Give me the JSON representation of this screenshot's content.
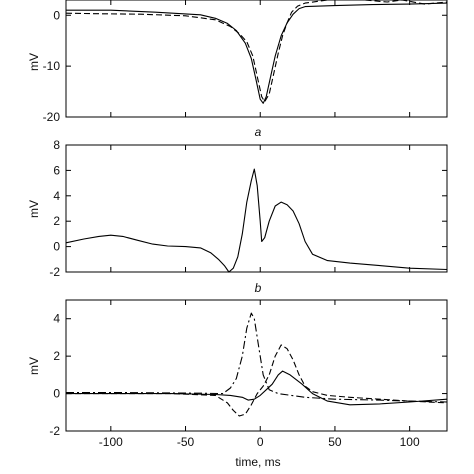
{
  "chart_data": [
    {
      "type": "line",
      "panel_label": "a",
      "xlabel": "",
      "ylabel": "mV",
      "xlim": [
        -130,
        125
      ],
      "ylim": [
        -20,
        3
      ],
      "yticks": [
        -20,
        -10,
        0
      ],
      "grid": false,
      "series": [
        {
          "style": "solid",
          "points": [
            [
              -130,
              1.0
            ],
            [
              -100,
              1.0
            ],
            [
              -70,
              0.6
            ],
            [
              -40,
              0.1
            ],
            [
              -30,
              -0.6
            ],
            [
              -22,
              -1.6
            ],
            [
              -16,
              -3.0
            ],
            [
              -10,
              -5.5
            ],
            [
              -6,
              -8.5
            ],
            [
              -3,
              -12.5
            ],
            [
              0,
              -16.5
            ],
            [
              2,
              -17.3
            ],
            [
              4,
              -16.0
            ],
            [
              7,
              -12.0
            ],
            [
              10,
              -8.0
            ],
            [
              14,
              -4.0
            ],
            [
              18,
              -1.5
            ],
            [
              22,
              0.2
            ],
            [
              26,
              1.3
            ],
            [
              30,
              1.7
            ],
            [
              50,
              1.9
            ],
            [
              75,
              2.1
            ],
            [
              100,
              2.2
            ],
            [
              125,
              2.4
            ]
          ]
        },
        {
          "style": "dashed",
          "points": [
            [
              -130,
              0.4
            ],
            [
              -110,
              0.3
            ],
            [
              -80,
              0.2
            ],
            [
              -50,
              -0.1
            ],
            [
              -30,
              -0.9
            ],
            [
              -20,
              -2.2
            ],
            [
              -14,
              -3.6
            ],
            [
              -9,
              -5.2
            ],
            [
              -5,
              -8.0
            ],
            [
              -2,
              -12.0
            ],
            [
              1,
              -16.0
            ],
            [
              3,
              -17.0
            ],
            [
              6,
              -15.5
            ],
            [
              9,
              -11.5
            ],
            [
              12,
              -7.5
            ],
            [
              15,
              -4.0
            ],
            [
              18,
              -1.5
            ],
            [
              21,
              0.6
            ],
            [
              25,
              1.8
            ],
            [
              30,
              2.4
            ],
            [
              50,
              3.2
            ],
            [
              60,
              3.4
            ],
            [
              70,
              3.0
            ],
            [
              85,
              2.6
            ],
            [
              95,
              3.0
            ],
            [
              110,
              2.2
            ],
            [
              125,
              2.6
            ]
          ]
        }
      ]
    },
    {
      "type": "line",
      "panel_label": "b",
      "xlabel": "",
      "ylabel": "mV",
      "xlim": [
        -130,
        125
      ],
      "ylim": [
        -2,
        8
      ],
      "yticks": [
        -2,
        0,
        2,
        4,
        6,
        8
      ],
      "grid": false,
      "series": [
        {
          "style": "solid",
          "points": [
            [
              -130,
              0.3
            ],
            [
              -118,
              0.6
            ],
            [
              -108,
              0.8
            ],
            [
              -100,
              0.9
            ],
            [
              -92,
              0.8
            ],
            [
              -82,
              0.5
            ],
            [
              -72,
              0.2
            ],
            [
              -62,
              0.05
            ],
            [
              -50,
              0.0
            ],
            [
              -40,
              -0.1
            ],
            [
              -33,
              -0.5
            ],
            [
              -28,
              -1.0
            ],
            [
              -24,
              -1.5
            ],
            [
              -21,
              -2.0
            ],
            [
              -18,
              -1.7
            ],
            [
              -15,
              -0.8
            ],
            [
              -12,
              1.0
            ],
            [
              -9,
              3.5
            ],
            [
              -6,
              5.2
            ],
            [
              -4,
              6.1
            ],
            [
              -2,
              4.8
            ],
            [
              0,
              2.0
            ],
            [
              1,
              0.4
            ],
            [
              3,
              0.7
            ],
            [
              6,
              2.0
            ],
            [
              10,
              3.2
            ],
            [
              14,
              3.5
            ],
            [
              18,
              3.3
            ],
            [
              22,
              2.8
            ],
            [
              26,
              1.8
            ],
            [
              30,
              0.4
            ],
            [
              35,
              -0.6
            ],
            [
              45,
              -1.1
            ],
            [
              60,
              -1.3
            ],
            [
              80,
              -1.5
            ],
            [
              100,
              -1.7
            ],
            [
              125,
              -1.8
            ]
          ]
        }
      ]
    },
    {
      "type": "line",
      "panel_label": "",
      "xlabel": "time, ms",
      "ylabel": "mV",
      "xlim": [
        -130,
        125
      ],
      "ylim": [
        -2,
        5
      ],
      "xticks": [
        -100,
        -50,
        0,
        50,
        100
      ],
      "yticks": [
        -2,
        0,
        2,
        4
      ],
      "grid": false,
      "series": [
        {
          "style": "solid",
          "points": [
            [
              -130,
              0.0
            ],
            [
              -100,
              0.0
            ],
            [
              -60,
              0.0
            ],
            [
              -30,
              -0.05
            ],
            [
              -20,
              -0.1
            ],
            [
              -12,
              -0.2
            ],
            [
              -8,
              -0.35
            ],
            [
              -4,
              -0.3
            ],
            [
              0,
              -0.1
            ],
            [
              4,
              0.2
            ],
            [
              8,
              0.5
            ],
            [
              12,
              1.0
            ],
            [
              15,
              1.2
            ],
            [
              20,
              1.0
            ],
            [
              28,
              0.5
            ],
            [
              35,
              0.0
            ],
            [
              45,
              -0.4
            ],
            [
              60,
              -0.6
            ],
            [
              80,
              -0.55
            ],
            [
              100,
              -0.45
            ],
            [
              125,
              -0.3
            ]
          ]
        },
        {
          "style": "dashdot",
          "points": [
            [
              -130,
              0.05
            ],
            [
              -90,
              0.05
            ],
            [
              -40,
              0.02
            ],
            [
              -25,
              0.0
            ],
            [
              -20,
              0.3
            ],
            [
              -16,
              0.8
            ],
            [
              -12,
              2.0
            ],
            [
              -9,
              3.5
            ],
            [
              -6,
              4.3
            ],
            [
              -4,
              4.0
            ],
            [
              -1,
              2.5
            ],
            [
              2,
              1.0
            ],
            [
              6,
              0.2
            ],
            [
              12,
              0.0
            ],
            [
              30,
              -0.2
            ],
            [
              50,
              -0.3
            ],
            [
              80,
              -0.35
            ],
            [
              100,
              -0.4
            ],
            [
              125,
              -0.45
            ]
          ]
        },
        {
          "style": "dashed",
          "points": [
            [
              -130,
              0.0
            ],
            [
              -60,
              0.0
            ],
            [
              -30,
              -0.1
            ],
            [
              -22,
              -0.5
            ],
            [
              -18,
              -0.9
            ],
            [
              -14,
              -1.2
            ],
            [
              -10,
              -1.1
            ],
            [
              -6,
              -0.6
            ],
            [
              -2,
              0.0
            ],
            [
              2,
              0.4
            ],
            [
              6,
              1.0
            ],
            [
              10,
              2.0
            ],
            [
              14,
              2.6
            ],
            [
              18,
              2.4
            ],
            [
              22,
              1.8
            ],
            [
              26,
              1.0
            ],
            [
              30,
              0.4
            ],
            [
              35,
              0.1
            ],
            [
              45,
              -0.1
            ],
            [
              60,
              -0.2
            ],
            [
              80,
              -0.3
            ],
            [
              100,
              -0.4
            ],
            [
              125,
              -0.5
            ]
          ]
        }
      ]
    }
  ]
}
